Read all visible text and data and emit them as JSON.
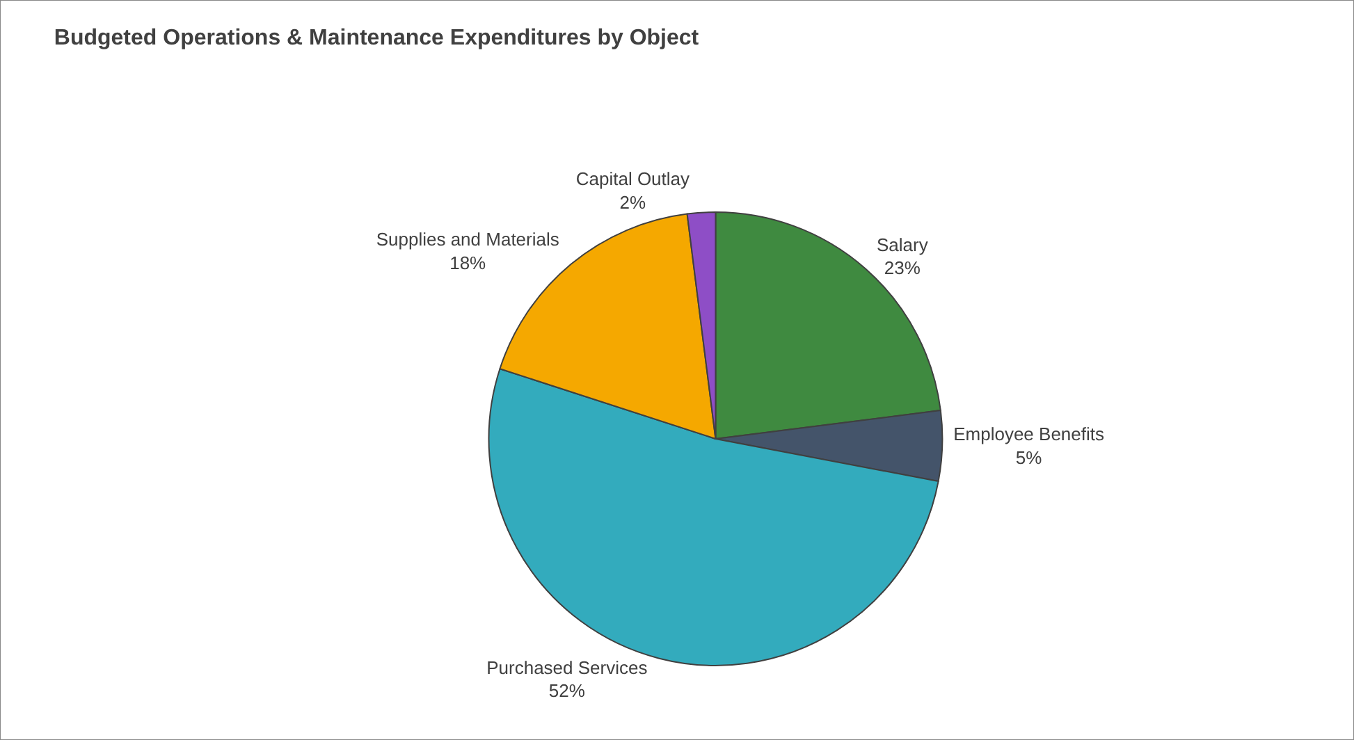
{
  "chart_data": {
    "type": "pie",
    "title": "Budgeted Operations & Maintenance Expenditures by Object",
    "categories": [
      "Salary",
      "Employee Benefits",
      "Purchased Services",
      "Supplies and Materials",
      "Capital Outlay"
    ],
    "values": [
      23,
      5,
      52,
      18,
      2
    ],
    "value_labels": [
      "23%",
      "5%",
      "52%",
      "18%",
      "2%"
    ],
    "colors": [
      "#3f8a40",
      "#44546a",
      "#33abbd",
      "#f5a800",
      "#8e4ec6"
    ]
  }
}
